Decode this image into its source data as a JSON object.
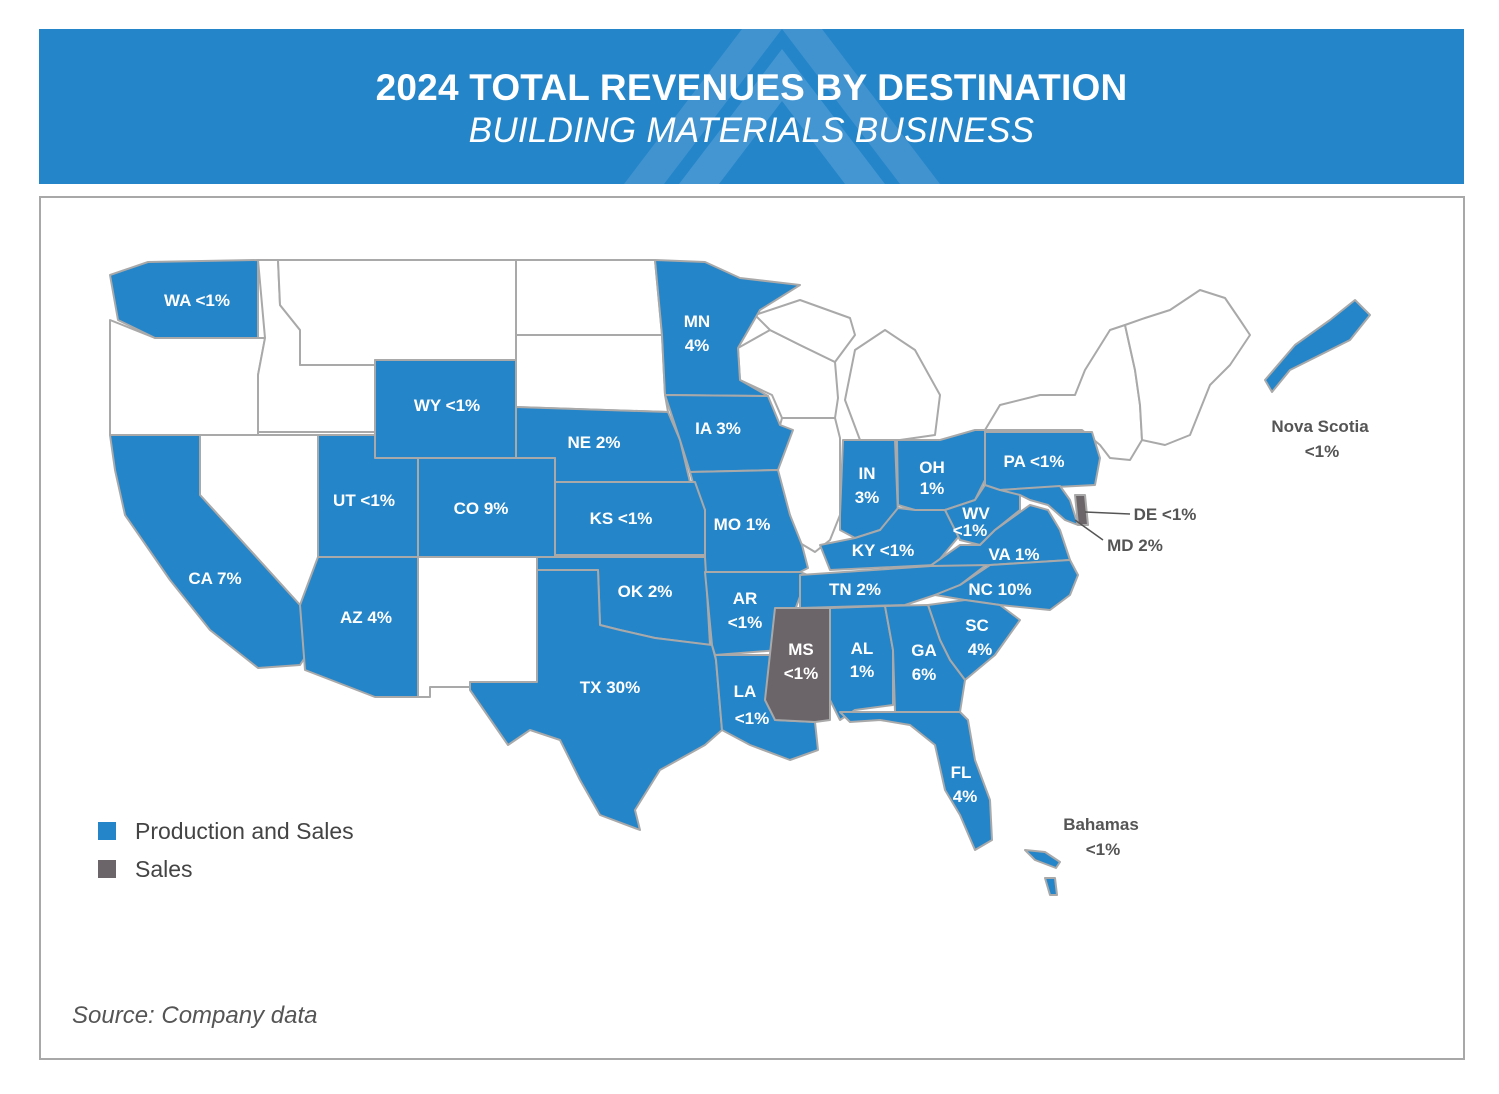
{
  "header": {
    "title": "2024 TOTAL REVENUES BY DESTINATION",
    "subtitle": "BUILDING MATERIALS BUSINESS"
  },
  "colors": {
    "production_and_sales": "#2485c9",
    "sales": "#6b6468",
    "no_revenue": "#ffffff",
    "border": "#a9a9a9",
    "header_bg": "#2485c9"
  },
  "regions": [
    {
      "id": "WA",
      "label": "WA <1%",
      "category": "production_and_sales"
    },
    {
      "id": "MN",
      "label": "MN",
      "value": "4%",
      "category": "production_and_sales"
    },
    {
      "id": "WY",
      "label": "WY <1%",
      "category": "production_and_sales"
    },
    {
      "id": "NE",
      "label": "NE 2%",
      "category": "production_and_sales"
    },
    {
      "id": "IA",
      "label": "IA 3%",
      "category": "production_and_sales"
    },
    {
      "id": "IN",
      "label": "IN",
      "value": "3%",
      "category": "production_and_sales"
    },
    {
      "id": "OH",
      "label": "OH",
      "value": "1%",
      "category": "production_and_sales"
    },
    {
      "id": "PA",
      "label": "PA <1%",
      "category": "production_and_sales"
    },
    {
      "id": "UT",
      "label": "UT <1%",
      "category": "production_and_sales"
    },
    {
      "id": "CO",
      "label": "CO 9%",
      "category": "production_and_sales"
    },
    {
      "id": "KS",
      "label": "KS <1%",
      "category": "production_and_sales"
    },
    {
      "id": "MO",
      "label": "MO 1%",
      "category": "production_and_sales"
    },
    {
      "id": "WV",
      "label": "WV",
      "value": "<1%",
      "category": "production_and_sales"
    },
    {
      "id": "DE",
      "label": "DE <1%",
      "category": "sales"
    },
    {
      "id": "MD",
      "label": "MD 2%",
      "category": "production_and_sales"
    },
    {
      "id": "KY",
      "label": "KY <1%",
      "category": "production_and_sales"
    },
    {
      "id": "VA",
      "label": "VA 1%",
      "category": "production_and_sales"
    },
    {
      "id": "CA",
      "label": "CA 7%",
      "category": "production_and_sales"
    },
    {
      "id": "OK",
      "label": "OK 2%",
      "category": "production_and_sales"
    },
    {
      "id": "TN",
      "label": "TN 2%",
      "category": "production_and_sales"
    },
    {
      "id": "NC",
      "label": "NC 10%",
      "category": "production_and_sales"
    },
    {
      "id": "AZ",
      "label": "AZ 4%",
      "category": "production_and_sales"
    },
    {
      "id": "AR",
      "label": "AR",
      "value": "<1%",
      "category": "production_and_sales"
    },
    {
      "id": "SC",
      "label": "SC",
      "value": "4%",
      "category": "production_and_sales"
    },
    {
      "id": "MS",
      "label": "MS",
      "value": "<1%",
      "category": "sales"
    },
    {
      "id": "AL",
      "label": "AL",
      "value": "1%",
      "category": "production_and_sales"
    },
    {
      "id": "GA",
      "label": "GA",
      "value": "6%",
      "category": "production_and_sales"
    },
    {
      "id": "TX",
      "label": "TX 30%",
      "category": "production_and_sales"
    },
    {
      "id": "LA",
      "label": "LA",
      "value": "<1%",
      "category": "production_and_sales"
    },
    {
      "id": "FL",
      "label": "FL",
      "value": "4%",
      "category": "production_and_sales"
    },
    {
      "id": "NS",
      "label": "Nova Scotia",
      "value": "<1%",
      "category": "production_and_sales"
    },
    {
      "id": "BS",
      "label": "Bahamas",
      "value": "<1%",
      "category": "production_and_sales"
    }
  ],
  "legend": [
    {
      "label": "Production and Sales",
      "color": "#2485c9"
    },
    {
      "label": "Sales",
      "color": "#6b6468"
    }
  ],
  "source": "Source: Company data"
}
